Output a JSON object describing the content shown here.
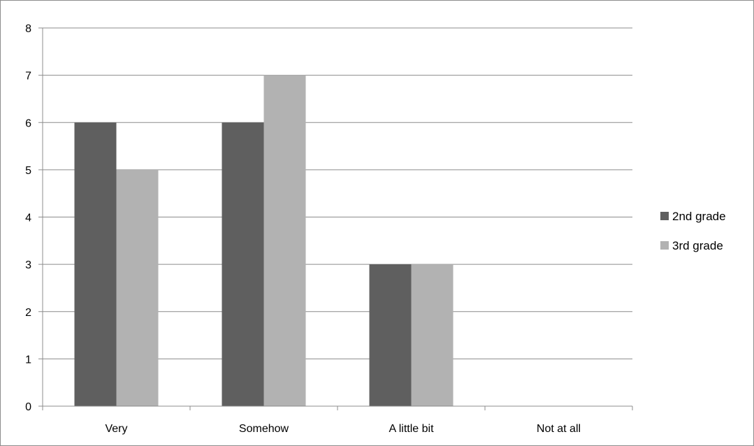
{
  "chart_data": {
    "type": "bar",
    "categories": [
      "Very",
      "Somehow",
      "A little bit",
      "Not at all"
    ],
    "series": [
      {
        "name": "2nd grade",
        "values": [
          6,
          6,
          3,
          0
        ],
        "color": "#5f5f5f"
      },
      {
        "name": "3rd grade",
        "values": [
          5,
          7,
          3,
          0
        ],
        "color": "#b2b2b2"
      }
    ],
    "yticks": [
      "0",
      "1",
      "2",
      "3",
      "4",
      "5",
      "6",
      "7",
      "8"
    ],
    "ylim": [
      0,
      8
    ],
    "grid": true,
    "legend": "right",
    "title": "",
    "xlabel": "",
    "ylabel": ""
  }
}
